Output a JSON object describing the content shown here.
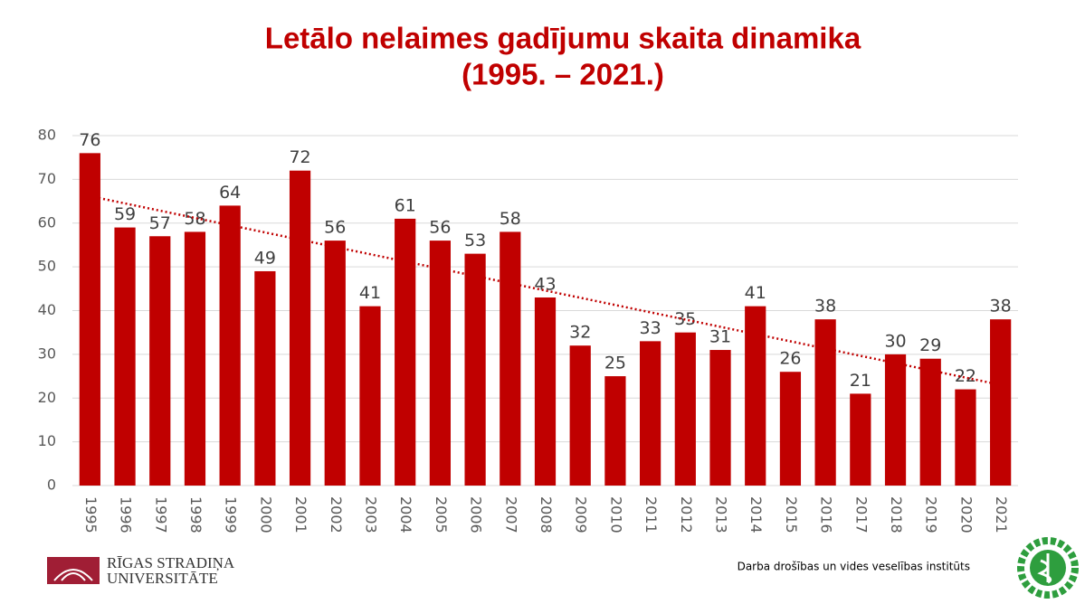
{
  "chart_data": {
    "type": "bar",
    "title": "Letālo nelaimes gadījumu skaita dinamika",
    "subtitle": "(1995. – 2021.)",
    "categories": [
      "1995",
      "1996",
      "1997",
      "1998",
      "1999",
      "2000",
      "2001",
      "2002",
      "2003",
      "2004",
      "2005",
      "2006",
      "2007",
      "2008",
      "2009",
      "2010",
      "2011",
      "2012",
      "2013",
      "2014",
      "2015",
      "2016",
      "2017",
      "2018",
      "2019",
      "2020",
      "2021"
    ],
    "values": [
      76,
      59,
      57,
      58,
      64,
      49,
      72,
      56,
      41,
      61,
      56,
      53,
      58,
      43,
      32,
      25,
      33,
      35,
      31,
      41,
      26,
      38,
      21,
      30,
      29,
      22,
      38
    ],
    "color": "#c00000",
    "ylim": [
      0,
      80
    ],
    "yticks": [
      0,
      10,
      20,
      30,
      40,
      50,
      60,
      70,
      80
    ],
    "grid": true,
    "trendline": "linear",
    "trendline_color": "#c00000"
  },
  "footer": {
    "university_line1": "RĪGAS STRADIŅA",
    "university_line2": "UNIVERSITĀTE",
    "institute": "Darba drošības un vides veselības institūts"
  }
}
